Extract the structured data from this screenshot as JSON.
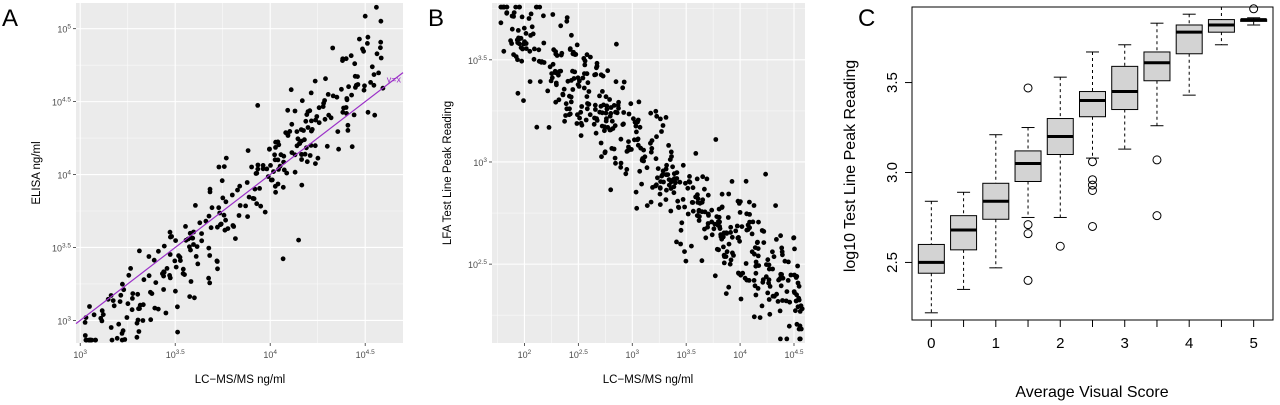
{
  "panels": {
    "a": {
      "letter": "A"
    },
    "b": {
      "letter": "B"
    },
    "c": {
      "letter": "C"
    }
  },
  "chart_data": [
    {
      "type": "scatter",
      "panel": "A",
      "xlabel": "LC−MS/MS ng/ml",
      "ylabel": "ELISA ng/ml",
      "x_scale": "log10",
      "y_scale": "log10",
      "xlim": [
        950,
        50000
      ],
      "ylim": [
        700,
        150000
      ],
      "x_ticks": [
        1000,
        3162.3,
        10000,
        31623
      ],
      "x_tick_labels": [
        {
          "base": "10",
          "exp": "3"
        },
        {
          "base": "10",
          "exp": "3.5"
        },
        {
          "base": "10",
          "exp": "4"
        },
        {
          "base": "10",
          "exp": "4.5"
        }
      ],
      "y_ticks": [
        1000,
        3162.3,
        10000,
        31623,
        100000
      ],
      "y_tick_labels": [
        {
          "base": "10",
          "exp": "3"
        },
        {
          "base": "10",
          "exp": "3.5"
        },
        {
          "base": "10",
          "exp": "4"
        },
        {
          "base": "10",
          "exp": "4.5"
        },
        {
          "base": "10",
          "exp": "5"
        }
      ],
      "grid": true,
      "reference_line": {
        "label": "y=x",
        "slope": 1,
        "color": "#9b30c8"
      },
      "n_points": 300,
      "trend_log10": {
        "slope": 1.25,
        "intercept": -0.95,
        "sd": 0.17
      }
    },
    {
      "type": "scatter",
      "panel": "B",
      "xlabel": "LC−MS/MS ng/ml",
      "ylabel": "LFA Test Line Peak Reading",
      "x_scale": "log10",
      "y_scale": "log10",
      "xlim": [
        50,
        40000
      ],
      "ylim": [
        130,
        6000
      ],
      "x_ticks": [
        100,
        316.2,
        1000,
        3162.3,
        10000,
        31623
      ],
      "x_tick_labels": [
        {
          "base": "10",
          "exp": "2"
        },
        {
          "base": "10",
          "exp": "2.5"
        },
        {
          "base": "10",
          "exp": "3"
        },
        {
          "base": "10",
          "exp": "3.5"
        },
        {
          "base": "10",
          "exp": "4"
        },
        {
          "base": "10",
          "exp": "4.5"
        }
      ],
      "y_ticks": [
        316.2,
        1000,
        3162.3
      ],
      "y_tick_labels": [
        {
          "base": "10",
          "exp": "2.5"
        },
        {
          "base": "10",
          "exp": "3"
        },
        {
          "base": "10",
          "exp": "3.5"
        }
      ],
      "grid": true,
      "n_points": 520,
      "trend_log10": {
        "slope": -0.5,
        "intercept": 4.6,
        "sd": 0.13
      }
    },
    {
      "type": "box",
      "panel": "C",
      "xlabel": "Average Visual Score",
      "ylabel": "log10 Test Line Peak Reading",
      "ylim": [
        2.18,
        3.92
      ],
      "y_ticks": [
        2.5,
        3.0,
        3.5
      ],
      "x_ticks": [
        0,
        1,
        2,
        3,
        4,
        5
      ],
      "positions": [
        0,
        0.5,
        1,
        1.5,
        2,
        2.5,
        3,
        3.5,
        4,
        4.5,
        5
      ],
      "box_color": "#d3d3d3",
      "boxes": [
        {
          "x": 0,
          "lo": 2.22,
          "q1": 2.44,
          "med": 2.5,
          "q3": 2.6,
          "hi": 2.84,
          "outliers": []
        },
        {
          "x": 0.5,
          "lo": 2.35,
          "q1": 2.57,
          "med": 2.68,
          "q3": 2.76,
          "hi": 2.89,
          "outliers": []
        },
        {
          "x": 1,
          "lo": 2.47,
          "q1": 2.74,
          "med": 2.84,
          "q3": 2.94,
          "hi": 3.21,
          "outliers": []
        },
        {
          "x": 1.5,
          "lo": 2.75,
          "q1": 2.95,
          "med": 3.05,
          "q3": 3.12,
          "hi": 3.25,
          "outliers": [
            3.47,
            2.71,
            2.66,
            2.4
          ]
        },
        {
          "x": 2,
          "lo": 2.75,
          "q1": 3.1,
          "med": 3.2,
          "q3": 3.3,
          "hi": 3.53,
          "outliers": [
            2.59
          ]
        },
        {
          "x": 2.5,
          "lo": 3.08,
          "q1": 3.31,
          "med": 3.4,
          "q3": 3.45,
          "hi": 3.67,
          "outliers": [
            3.06,
            2.96,
            2.93,
            2.9,
            2.7
          ]
        },
        {
          "x": 3,
          "lo": 3.13,
          "q1": 3.35,
          "med": 3.45,
          "q3": 3.59,
          "hi": 3.71,
          "outliers": []
        },
        {
          "x": 3.5,
          "lo": 3.26,
          "q1": 3.51,
          "med": 3.61,
          "q3": 3.67,
          "hi": 3.83,
          "outliers": [
            3.07,
            2.76
          ]
        },
        {
          "x": 4,
          "lo": 3.43,
          "q1": 3.66,
          "med": 3.78,
          "q3": 3.82,
          "hi": 3.88,
          "outliers": []
        },
        {
          "x": 4.5,
          "lo": 3.71,
          "q1": 3.78,
          "med": 3.82,
          "q3": 3.85,
          "hi": 3.92,
          "outliers": []
        },
        {
          "x": 5,
          "lo": 3.82,
          "q1": 3.84,
          "med": 3.85,
          "q3": 3.85,
          "hi": 3.86,
          "outliers": [
            3.91
          ]
        }
      ]
    }
  ]
}
